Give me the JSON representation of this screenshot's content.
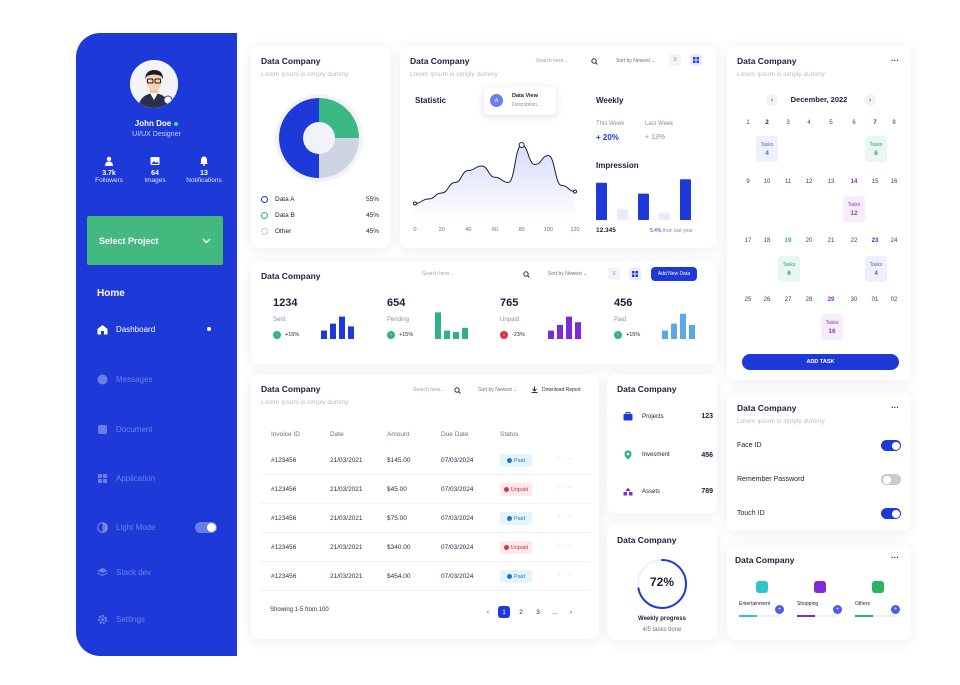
{
  "sidebar": {
    "user_name": "John Doe",
    "user_role": "UI/UX Designer",
    "stats": [
      {
        "value": "3.7k",
        "label": "Followers"
      },
      {
        "value": "64",
        "label": "Images"
      },
      {
        "value": "13",
        "label": "Notifications"
      }
    ],
    "select_project": "Select Project",
    "section_title": "Home",
    "items": [
      {
        "label": "Dashboard",
        "active": true
      },
      {
        "label": "Messages"
      },
      {
        "label": "Document"
      },
      {
        "label": "Application"
      },
      {
        "label": "Light Mode"
      },
      {
        "label": "Stack dev"
      },
      {
        "label": "Settings"
      }
    ],
    "accent": "#1d3ad9",
    "green": "#43b97f"
  },
  "donut_card": {
    "title": "Data Company",
    "subtitle": "Lorem Ipsum is simply dummy",
    "legend": [
      {
        "label": "Data A",
        "value": "55%"
      },
      {
        "label": "Data B",
        "value": "45%"
      },
      {
        "label": "Other",
        "value": "45%"
      }
    ]
  },
  "statistic_card": {
    "title": "Data Company",
    "subtitle": "Lorem Ipsum is simply dummy",
    "search_placeholder": "Search here...",
    "sort_label": "Sort by Newest",
    "statistic_label": "Statistic",
    "tooltip_title": "Data View",
    "tooltip_sub": "Description...",
    "x_ticks": [
      "0",
      "20",
      "40",
      "60",
      "80",
      "100",
      "120"
    ],
    "weekly_label": "Weekly",
    "this_week_label": "This Week",
    "this_week_value": "+ 20%",
    "last_week_label": "Last Week",
    "last_week_value": "+ 13%",
    "impression_label": "Impression",
    "impression_value": "12.345",
    "impression_change": "5.4%",
    "impression_change_text": "than last year"
  },
  "chart_data": {
    "type": "line",
    "x": [
      0,
      10,
      20,
      30,
      40,
      50,
      60,
      70,
      80,
      90,
      100,
      110,
      120
    ],
    "values": [
      10,
      16,
      24,
      38,
      54,
      60,
      45,
      38,
      88,
      62,
      74,
      34,
      26
    ],
    "xlim": [
      0,
      120
    ],
    "ylim": [
      0,
      100
    ],
    "bars": [
      62,
      18,
      44,
      12,
      68,
      30
    ],
    "xlabel": "",
    "ylabel": ""
  },
  "status_card": {
    "title": "Data Company",
    "search_placeholder": "Search here...",
    "sort_label": "Sort by Newest",
    "add_button": "Add New Data",
    "items": [
      {
        "value": "1234",
        "label": "Sent",
        "change": "+15%",
        "color": "#1d3ad9",
        "bars": [
          30,
          55,
          80,
          45
        ]
      },
      {
        "value": "654",
        "label": "Pending",
        "change": "+15%",
        "color": "#2fb28a",
        "bars": [
          95,
          30,
          25,
          40
        ]
      },
      {
        "value": "765",
        "label": "Unpaid",
        "change": "-23%",
        "color": "#7e2bd6",
        "bars": [
          30,
          50,
          80,
          60
        ]
      },
      {
        "value": "456",
        "label": "Paid",
        "change": "+15%",
        "color": "#5aa8e8",
        "bars": [
          30,
          55,
          90,
          50
        ]
      }
    ]
  },
  "invoice_card": {
    "title": "Data Company",
    "subtitle": "Lorem Ipsum is simply dummy",
    "search_placeholder": "Search here...",
    "sort_label": "Sort by Newest",
    "download_label": "Download Report",
    "columns": [
      "Invoice ID",
      "Date",
      "Amount",
      "Due Date",
      "Status"
    ],
    "rows": [
      {
        "id": "#123456",
        "date": "21/03/2021",
        "amount": "$145.00",
        "due": "07/03/2024",
        "status": "Paid"
      },
      {
        "id": "#123456",
        "date": "21/03/2021",
        "amount": "$45.00",
        "due": "07/03/2024",
        "status": "Unpaid"
      },
      {
        "id": "#123456",
        "date": "21/03/2021",
        "amount": "$75.00",
        "due": "07/03/2024",
        "status": "Paid"
      },
      {
        "id": "#123456",
        "date": "21/03/2021",
        "amount": "$340.00",
        "due": "07/03/2024",
        "status": "Unpaid"
      },
      {
        "id": "#123456",
        "date": "21/03/2021",
        "amount": "$454.00",
        "due": "07/03/2024",
        "status": "Paid"
      }
    ],
    "showing": "Showing 1-5 from 100",
    "pages": [
      "1",
      "2",
      "3",
      "..."
    ]
  },
  "projects_card": {
    "title": "Data Company",
    "rows": [
      {
        "label": "Projects",
        "value": "123"
      },
      {
        "label": "Invesment",
        "value": "456"
      },
      {
        "label": "Assets",
        "value": "789"
      }
    ]
  },
  "progress_card": {
    "title": "Data Company",
    "percent": "72%",
    "progress": 0.72,
    "label": "Weekly progress",
    "tasks": "4/5 tasks done"
  },
  "calendar_card": {
    "title": "Data Company",
    "subtitle": "Lorem Ipsum is simply dummy",
    "month": "December, 2022",
    "weeks": [
      [
        "1",
        "2",
        "3",
        "4",
        "5",
        "6",
        "7",
        "8"
      ],
      [
        "9",
        "10",
        "11",
        "12",
        "13",
        "14",
        "15",
        "16"
      ],
      [
        "17",
        "18",
        "19",
        "20",
        "21",
        "22",
        "23",
        "24"
      ],
      [
        "25",
        "26",
        "27",
        "28",
        "29",
        "30",
        "01",
        "02"
      ]
    ],
    "tasks": [
      {
        "label": "Tasks",
        "count": "4"
      },
      {
        "label": "Tasks",
        "count": "6"
      },
      {
        "label": "Tasks",
        "count": "12"
      },
      {
        "label": "Tasks",
        "count": "6"
      },
      {
        "label": "Tasks",
        "count": "4"
      },
      {
        "label": "Tasks",
        "count": "16"
      }
    ],
    "add_task": "ADD TASK"
  },
  "settings_card": {
    "title": "Data Company",
    "subtitle": "Lorem Ipsum is simply dummy",
    "items": [
      {
        "label": "Face ID",
        "on": true
      },
      {
        "label": "Remember Password",
        "on": false
      },
      {
        "label": "Touch ID",
        "on": true
      }
    ]
  },
  "categories_card": {
    "title": "Data Company",
    "items": [
      {
        "label": "Entertainment",
        "color": "#2fc4c9"
      },
      {
        "label": "Shopping",
        "color": "#7e2bd6"
      },
      {
        "label": "Others",
        "color": "#28b463"
      }
    ]
  }
}
